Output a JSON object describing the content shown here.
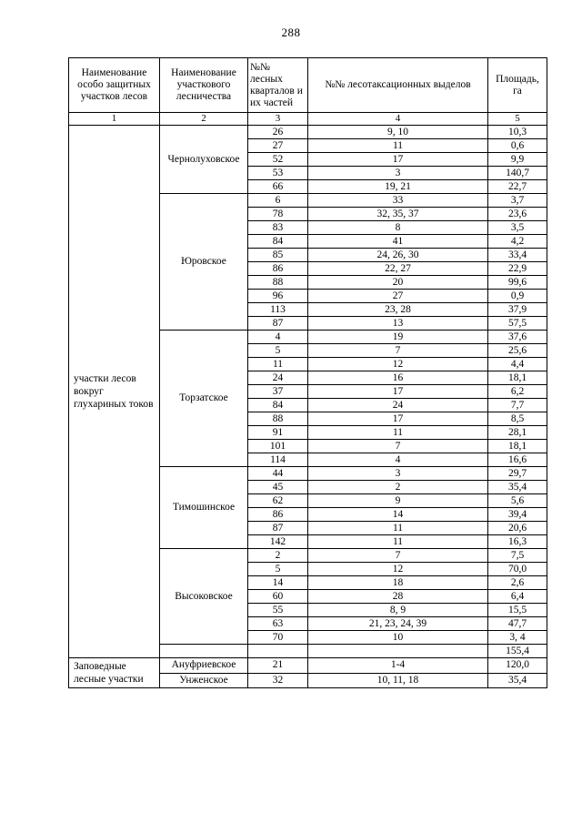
{
  "page": {
    "number": "288"
  },
  "table": {
    "header": {
      "col1": "Наименование особо защитных участков лесов",
      "col2": "Наименование участкового лесничества",
      "col3": "№№ лесных кварталов и их частей",
      "col4": "№№ лесотаксационных выделов",
      "col5": "Площадь, га",
      "numbers": [
        "1",
        "2",
        "3",
        "4",
        "5"
      ]
    },
    "sections": [
      {
        "name": "участки лесов вокруг глухариных токов",
        "groups": [
          {
            "forestry": "Чернолуховское",
            "rows": [
              [
                "26",
                "9, 10",
                "10,3"
              ],
              [
                "27",
                "11",
                "0,6"
              ],
              [
                "52",
                "17",
                "9,9"
              ],
              [
                "53",
                "3",
                "140,7"
              ],
              [
                "66",
                "19, 21",
                "22,7"
              ]
            ]
          },
          {
            "forestry": "Юровское",
            "rows": [
              [
                "6",
                "33",
                "3,7"
              ],
              [
                "78",
                "32, 35, 37",
                "23,6"
              ],
              [
                "83",
                "8",
                "3,5"
              ],
              [
                "84",
                "41",
                "4,2"
              ],
              [
                "85",
                "24, 26, 30",
                "33,4"
              ],
              [
                "86",
                "22, 27",
                "22,9"
              ],
              [
                "88",
                "20",
                "99,6"
              ],
              [
                "96",
                "27",
                "0,9"
              ],
              [
                "113",
                "23, 28",
                "37,9"
              ],
              [
                "87",
                "13",
                "57,5"
              ]
            ]
          },
          {
            "forestry": "Торзатское",
            "rows": [
              [
                "4",
                "19",
                "37,6"
              ],
              [
                "5",
                "7",
                "25,6"
              ],
              [
                "11",
                "12",
                "4,4"
              ],
              [
                "24",
                "16",
                "18,1"
              ],
              [
                "37",
                "17",
                "6,2"
              ],
              [
                "84",
                "24",
                "7,7"
              ],
              [
                "88",
                "17",
                "8,5"
              ],
              [
                "91",
                "11",
                "28,1"
              ],
              [
                "101",
                "7",
                "18,1"
              ],
              [
                "114",
                "4",
                "16,6"
              ]
            ]
          },
          {
            "forestry": "Тимошинское",
            "rows": [
              [
                "44",
                "3",
                "29,7"
              ],
              [
                "45",
                "2",
                "35,4"
              ],
              [
                "62",
                "9",
                "5,6"
              ],
              [
                "86",
                "14",
                "39,4"
              ],
              [
                "87",
                "11",
                "20,6"
              ],
              [
                "142",
                "11",
                "16,3"
              ]
            ]
          },
          {
            "forestry": "Высоковское",
            "rows": [
              [
                "2",
                "7",
                "7,5"
              ],
              [
                "5",
                "12",
                "70,0"
              ],
              [
                "14",
                "18",
                "2,6"
              ],
              [
                "60",
                "28",
                "6,4"
              ],
              [
                "55",
                "8, 9",
                "15,5"
              ],
              [
                "63",
                "21, 23, 24, 39",
                "47,7"
              ],
              [
                "70",
                "10",
                "3, 4"
              ]
            ]
          }
        ],
        "total": "155,4"
      },
      {
        "name": "Заповедные лесные участки",
        "groups": [
          {
            "forestry": "Ануфриевское",
            "rows": [
              [
                "21",
                "1-4",
                "120,0"
              ]
            ]
          },
          {
            "forestry": "Унженское",
            "rows": [
              [
                "32",
                "10, 11, 18",
                "35,4"
              ]
            ]
          }
        ]
      }
    ]
  }
}
